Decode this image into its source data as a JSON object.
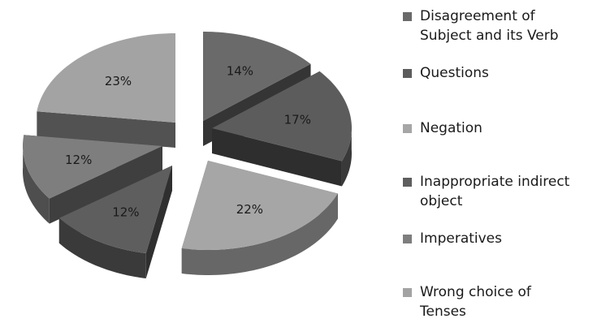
{
  "chart_data": {
    "type": "pie",
    "style": "3d-exploded",
    "categories": [
      "Disagreement of Subject and its Verb",
      "Questions",
      "Negation",
      "Inappropriate indirect object",
      "Imperatives",
      "Wrong choice of Tenses"
    ],
    "values": [
      14,
      17,
      22,
      12,
      12,
      23
    ],
    "value_labels": [
      "14%",
      "17%",
      "22%",
      "12%",
      "12%",
      "23%"
    ],
    "colors": [
      "#6a6a6a",
      "#5c5c5c",
      "#a6a6a6",
      "#5e5e5e",
      "#7e7e7e",
      "#a3a3a3"
    ],
    "legend_position": "right",
    "title": ""
  },
  "legend": {
    "items": [
      {
        "lines": [
          "Disagreement of",
          "Subject and its Verb"
        ]
      },
      {
        "lines": [
          "Questions"
        ]
      },
      {
        "lines": [
          "Negation"
        ]
      },
      {
        "lines": [
          "Inappropriate indirect",
          "object"
        ]
      },
      {
        "lines": [
          "Imperatives"
        ]
      },
      {
        "lines": [
          "Wrong choice of",
          "Tenses"
        ]
      }
    ]
  }
}
